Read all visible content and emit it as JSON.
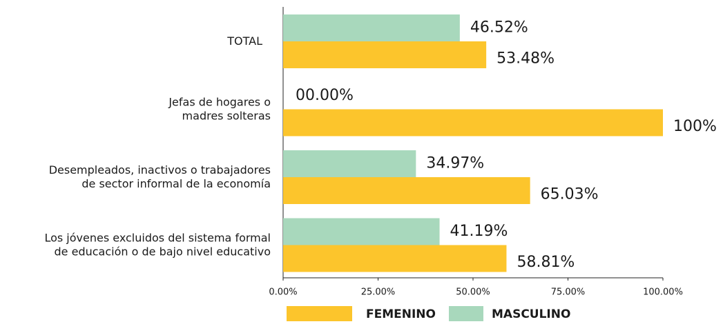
{
  "chart_data": {
    "type": "hbar",
    "categories": [
      "TOTAL",
      "Jefas de hogares o\nmadres solteras",
      "Desempleados, inactivos o trabajadores\nde sector informal de la economía",
      "Los jóvenes excluidos del sistema formal\nde educación o de bajo nivel educativo"
    ],
    "series": [
      {
        "name": "MASCULINO",
        "color": "#a8d8bc",
        "values": [
          46.52,
          0,
          34.97,
          41.19
        ],
        "value_labels": [
          "46.52%",
          "00.00%",
          "34.97%",
          "41.19%"
        ]
      },
      {
        "name": "FEMENINO",
        "color": "#fcc52c",
        "values": [
          53.48,
          100,
          65.03,
          58.81
        ],
        "value_labels": [
          "53.48%",
          "100%",
          "65.03%",
          "58.81%"
        ]
      }
    ],
    "xlim": [
      0,
      100
    ],
    "xticks": [
      {
        "value": 0,
        "label": "0.00%"
      },
      {
        "value": 25,
        "label": "25.00%"
      },
      {
        "value": 50,
        "label": "50.00%"
      },
      {
        "value": 75,
        "label": "75.00%"
      },
      {
        "value": 100,
        "label": "100.00%"
      }
    ],
    "legend": "bottom"
  }
}
